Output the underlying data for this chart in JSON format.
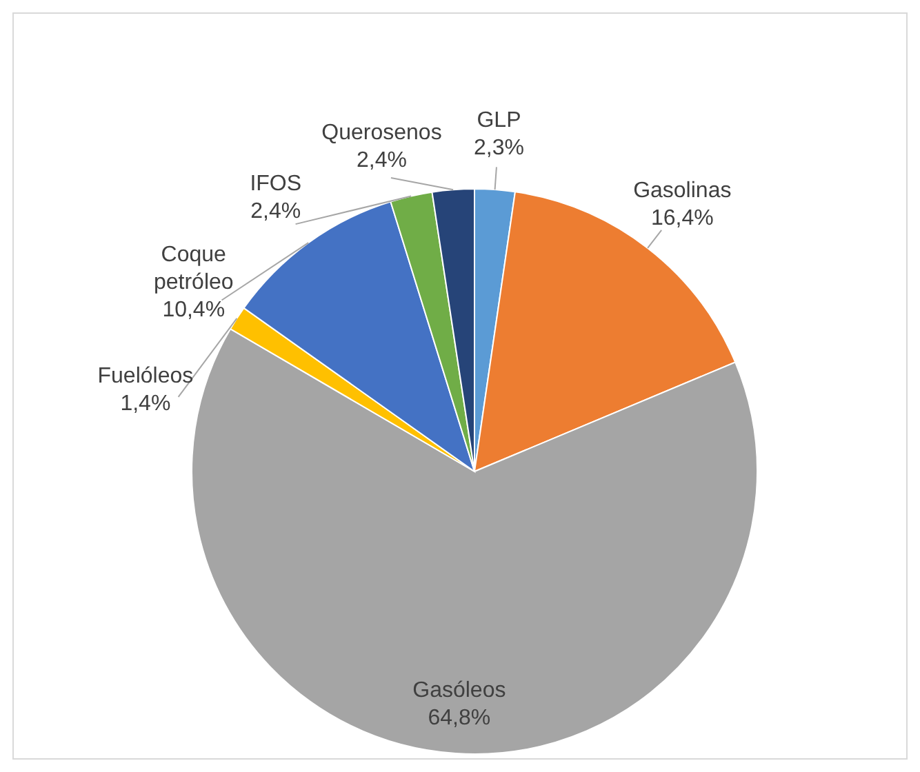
{
  "chart_data": {
    "type": "pie",
    "categories": [
      "GLP",
      "Gasolinas",
      "Gasóleos",
      "Fuelóleos",
      "Coque petróleo",
      "IFOS",
      "Querosenos"
    ],
    "values": [
      2.3,
      16.4,
      64.8,
      1.4,
      10.4,
      2.4,
      2.4
    ],
    "colors": [
      "#5b9bd5",
      "#ed7d31",
      "#a5a5a5",
      "#ffc000",
      "#4472c4",
      "#70ad47",
      "#264478"
    ],
    "value_labels": [
      "2,3%",
      "16,4%",
      "64,8%",
      "1,4%",
      "10,4%",
      "2,4%",
      "2,4%"
    ]
  }
}
